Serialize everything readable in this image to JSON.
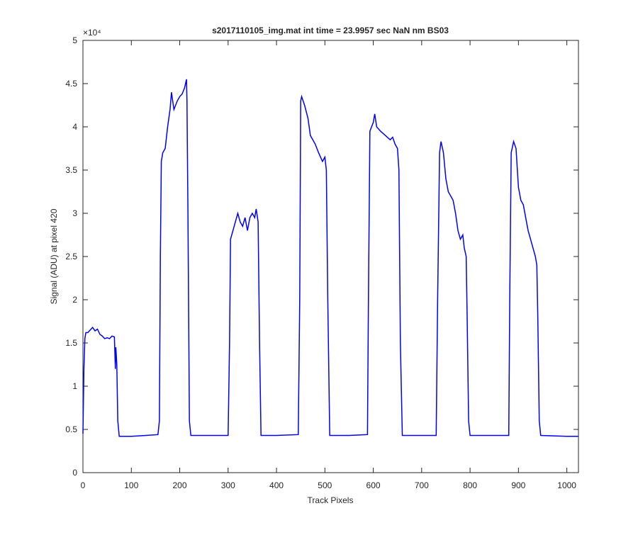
{
  "chart_data": {
    "type": "line",
    "title": "s2017110105_img.mat int time = 23.9957 sec  NaN nm BS03",
    "x_label": "Track Pixels",
    "y_label": "Signal (ADU) at pixel 420",
    "y_exponent_label": "×10⁴",
    "xlim": [
      0,
      1024
    ],
    "ylim": [
      0,
      5
    ],
    "xticks": [
      0,
      100,
      200,
      300,
      400,
      500,
      600,
      700,
      800,
      900,
      1000
    ],
    "yticks": [
      0,
      0.5,
      1,
      1.5,
      2,
      2.5,
      3,
      3.5,
      4,
      4.5,
      5
    ],
    "grid": false,
    "x": [
      0,
      2,
      4,
      6,
      10,
      15,
      20,
      25,
      30,
      35,
      40,
      45,
      50,
      55,
      60,
      65,
      67,
      68,
      70,
      72,
      75,
      100,
      130,
      155,
      158,
      160,
      162,
      165,
      170,
      175,
      180,
      183,
      188,
      195,
      200,
      205,
      210,
      214,
      215,
      217,
      220,
      223,
      260,
      300,
      303,
      305,
      310,
      315,
      320,
      325,
      330,
      335,
      340,
      345,
      350,
      355,
      358,
      362,
      365,
      368,
      400,
      445,
      448,
      450,
      452,
      458,
      465,
      470,
      475,
      480,
      487,
      495,
      500,
      503,
      506,
      510,
      550,
      588,
      590,
      593,
      600,
      603,
      607,
      615,
      625,
      635,
      640,
      645,
      650,
      653,
      656,
      660,
      700,
      730,
      733,
      737,
      740,
      745,
      750,
      755,
      765,
      770,
      775,
      780,
      785,
      788,
      792,
      794,
      797,
      800,
      850,
      880,
      882,
      885,
      890,
      895,
      900,
      905,
      910,
      915,
      920,
      925,
      930,
      935,
      938,
      940,
      943,
      946,
      1000,
      1024
    ],
    "series": [
      {
        "color": "#0000ff",
        "values": [
          0.45,
          1.2,
          1.55,
          1.62,
          1.62,
          1.65,
          1.68,
          1.64,
          1.66,
          1.6,
          1.58,
          1.55,
          1.56,
          1.55,
          1.58,
          1.57,
          1.2,
          1.45,
          1.25,
          0.6,
          0.42,
          0.42,
          0.43,
          0.44,
          0.6,
          2.5,
          3.6,
          3.7,
          3.75,
          4.0,
          4.2,
          4.4,
          4.2,
          4.3,
          4.35,
          4.38,
          4.45,
          4.55,
          4.3,
          3.0,
          0.6,
          0.43,
          0.43,
          0.43,
          1.5,
          2.7,
          2.8,
          2.9,
          3.0,
          2.9,
          2.85,
          2.95,
          2.8,
          2.95,
          3.0,
          2.95,
          3.05,
          2.9,
          1.5,
          0.43,
          0.43,
          0.44,
          2.0,
          4.3,
          4.35,
          4.25,
          4.1,
          3.9,
          3.85,
          3.8,
          3.7,
          3.6,
          3.65,
          3.5,
          2.0,
          0.43,
          0.43,
          0.44,
          2.0,
          3.95,
          4.05,
          4.15,
          4.0,
          3.95,
          3.9,
          3.85,
          3.88,
          3.8,
          3.75,
          3.5,
          1.5,
          0.43,
          0.43,
          0.43,
          2.0,
          3.7,
          3.83,
          3.7,
          3.4,
          3.25,
          3.15,
          3.0,
          2.8,
          2.7,
          2.75,
          2.6,
          2.5,
          1.8,
          0.6,
          0.43,
          0.43,
          0.43,
          2.0,
          3.7,
          3.83,
          3.75,
          3.3,
          3.15,
          3.1,
          2.95,
          2.8,
          2.7,
          2.6,
          2.5,
          2.4,
          1.8,
          0.6,
          0.43,
          0.42,
          0.42
        ]
      }
    ]
  }
}
